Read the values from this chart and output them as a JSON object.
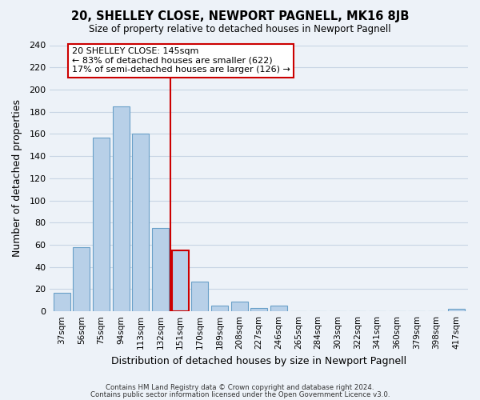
{
  "title": "20, SHELLEY CLOSE, NEWPORT PAGNELL, MK16 8JB",
  "subtitle": "Size of property relative to detached houses in Newport Pagnell",
  "xlabel": "Distribution of detached houses by size in Newport Pagnell",
  "ylabel": "Number of detached properties",
  "footer_lines": [
    "Contains HM Land Registry data © Crown copyright and database right 2024.",
    "Contains public sector information licensed under the Open Government Licence v3.0."
  ],
  "bar_labels": [
    "37sqm",
    "56sqm",
    "75sqm",
    "94sqm",
    "113sqm",
    "132sqm",
    "151sqm",
    "170sqm",
    "189sqm",
    "208sqm",
    "227sqm",
    "246sqm",
    "265sqm",
    "284sqm",
    "303sqm",
    "322sqm",
    "341sqm",
    "360sqm",
    "379sqm",
    "398sqm",
    "417sqm"
  ],
  "bar_heights": [
    17,
    58,
    157,
    185,
    160,
    75,
    55,
    27,
    5,
    9,
    3,
    5,
    0,
    0,
    0,
    0,
    0,
    0,
    0,
    0,
    2
  ],
  "bar_color": "#b8d0e8",
  "bar_edge_color": "#6aa0c8",
  "highlight_bar_index": 6,
  "highlight_bar_edge_color": "#cc0000",
  "vline_color": "#cc0000",
  "annotation_text": "20 SHELLEY CLOSE: 145sqm\n← 83% of detached houses are smaller (622)\n17% of semi-detached houses are larger (126) →",
  "annotation_box_edge_color": "#cc0000",
  "ylim": [
    0,
    240
  ],
  "yticks": [
    0,
    20,
    40,
    60,
    80,
    100,
    120,
    140,
    160,
    180,
    200,
    220,
    240
  ],
  "grid_color": "#c8d4e4",
  "background_color": "#edf2f8",
  "fig_background_color": "#edf2f8"
}
